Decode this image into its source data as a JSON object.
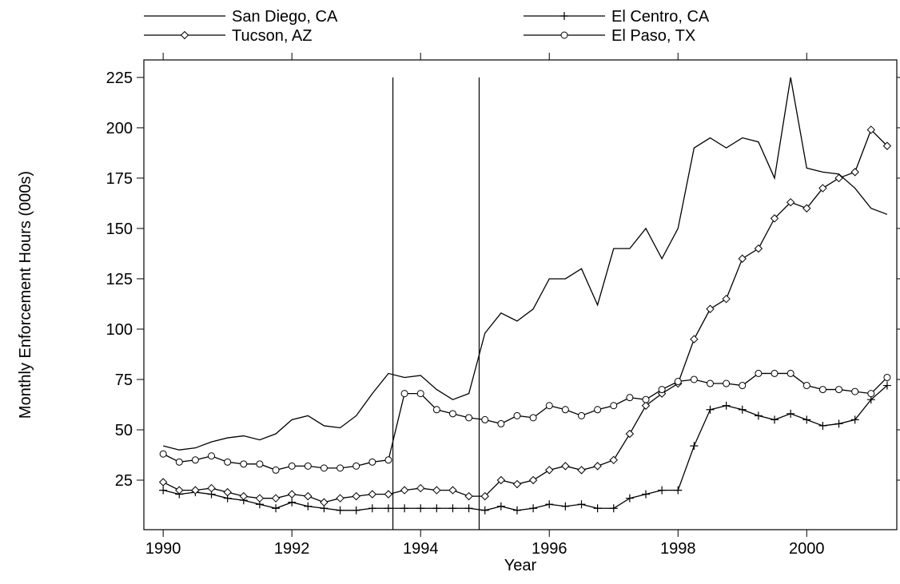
{
  "chart_data": {
    "type": "line",
    "xlabel": "Year",
    "ylabel": "Monthly Enforcement Hours (000s)",
    "x": [
      1990,
      1990.25,
      1990.5,
      1990.75,
      1991,
      1991.25,
      1991.5,
      1991.75,
      1992,
      1992.25,
      1992.5,
      1992.75,
      1993,
      1993.25,
      1993.5,
      1993.75,
      1994,
      1994.25,
      1994.5,
      1994.75,
      1995,
      1995.25,
      1995.5,
      1995.75,
      1996,
      1996.25,
      1996.5,
      1996.75,
      1997,
      1997.25,
      1997.5,
      1997.75,
      1998,
      1998.25,
      1998.5,
      1998.75,
      1999,
      1999.25,
      1999.5,
      1999.75,
      2000,
      2000.25,
      2000.5,
      2000.75,
      2001,
      2001.25
    ],
    "series": [
      {
        "name": "San Diego, CA",
        "marker": "none",
        "color": "#000000",
        "values": [
          42,
          40,
          41,
          44,
          46,
          47,
          45,
          48,
          55,
          57,
          52,
          51,
          57,
          68,
          78,
          76,
          77,
          70,
          65,
          68,
          98,
          108,
          104,
          110,
          125,
          125,
          130,
          112,
          140,
          140,
          150,
          135,
          150,
          190,
          195,
          190,
          195,
          193,
          175,
          225,
          180,
          178,
          177,
          170,
          160,
          157
        ]
      },
      {
        "name": "El Centro, CA",
        "marker": "plus",
        "color": "#000000",
        "values": [
          20,
          18,
          19,
          18,
          16,
          15,
          13,
          11,
          14,
          12,
          11,
          10,
          10,
          11,
          11,
          11,
          11,
          11,
          11,
          11,
          10,
          12,
          10,
          11,
          13,
          12,
          13,
          11,
          11,
          16,
          18,
          20,
          20,
          42,
          60,
          62,
          60,
          57,
          55,
          58,
          55,
          52,
          53,
          55,
          65,
          72
        ]
      },
      {
        "name": "Tucson, AZ",
        "marker": "diamond",
        "color": "#000000",
        "values": [
          24,
          20,
          20,
          21,
          19,
          17,
          16,
          16,
          18,
          17,
          14,
          16,
          17,
          18,
          18,
          20,
          21,
          20,
          20,
          17,
          17,
          25,
          23,
          25,
          30,
          32,
          30,
          32,
          35,
          48,
          62,
          68,
          73,
          95,
          110,
          115,
          135,
          140,
          155,
          163,
          160,
          170,
          175,
          178,
          199,
          191
        ]
      },
      {
        "name": "El Paso, TX",
        "marker": "circle",
        "color": "#000000",
        "values": [
          38,
          34,
          35,
          37,
          34,
          33,
          33,
          30,
          32,
          32,
          31,
          31,
          32,
          34,
          35,
          68,
          68,
          60,
          58,
          56,
          55,
          53,
          57,
          56,
          62,
          60,
          57,
          60,
          62,
          66,
          65,
          70,
          74,
          75,
          73,
          73,
          72,
          78,
          78,
          78,
          72,
          70,
          70,
          69,
          68,
          76
        ]
      }
    ],
    "vlines": [
      1993.57,
      1994.91
    ],
    "vline_top": 225,
    "xlim": [
      1989.7,
      2001.4
    ],
    "xticks": [
      1990,
      1992,
      1994,
      1996,
      1998,
      2000
    ],
    "ylim": [
      0.4,
      233.7
    ],
    "yticks": [
      25,
      50,
      75,
      100,
      125,
      150,
      175,
      200,
      225
    ],
    "grid": false
  }
}
